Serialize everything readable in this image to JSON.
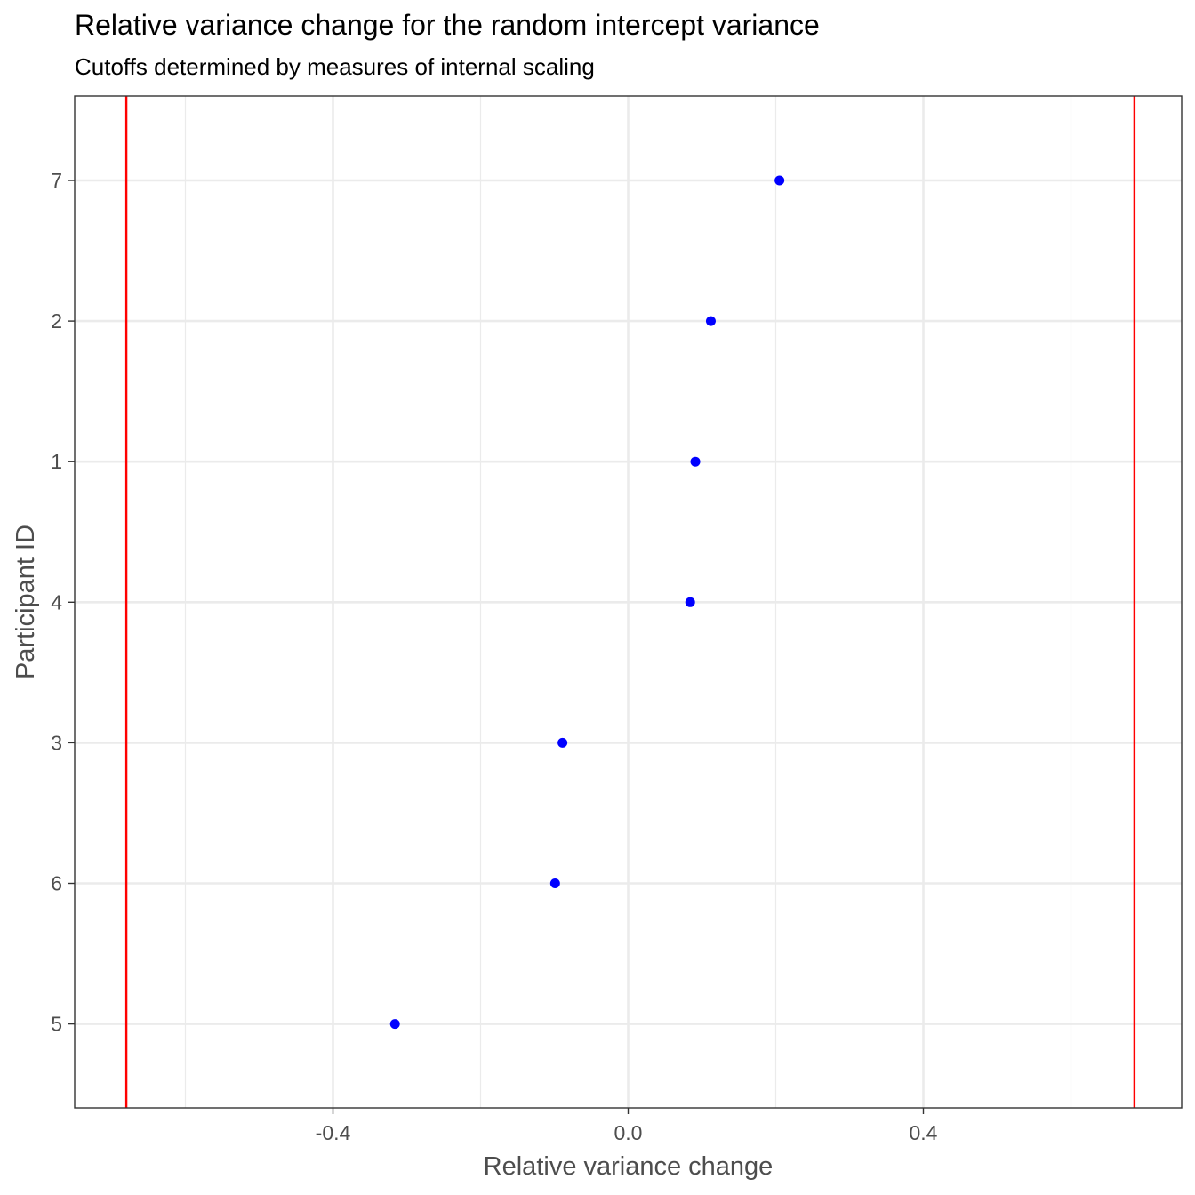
{
  "chart_data": {
    "type": "scatter",
    "title": "Relative variance change for the random intercept variance",
    "subtitle": "Cutoffs determined by measures of internal scaling",
    "xlabel": "Relative variance change",
    "ylabel": "Participant ID",
    "xlim": [
      -0.75,
      0.75
    ],
    "x_ticks": [
      -0.4,
      0.0,
      0.4
    ],
    "x_tick_labels": [
      "-0.4",
      "0.0",
      "0.4"
    ],
    "categories": [
      "7",
      "2",
      "1",
      "4",
      "3",
      "6",
      "5"
    ],
    "points": [
      {
        "id": "7",
        "x": 0.205
      },
      {
        "id": "2",
        "x": 0.112
      },
      {
        "id": "1",
        "x": 0.091
      },
      {
        "id": "4",
        "x": 0.084
      },
      {
        "id": "3",
        "x": -0.089
      },
      {
        "id": "6",
        "x": -0.099
      },
      {
        "id": "5",
        "x": -0.316
      }
    ],
    "cutoffs": [
      -0.68,
      0.686
    ],
    "point_color": "#0000ff",
    "cutoff_color": "#ff0000",
    "grid": true,
    "legend": "none"
  }
}
